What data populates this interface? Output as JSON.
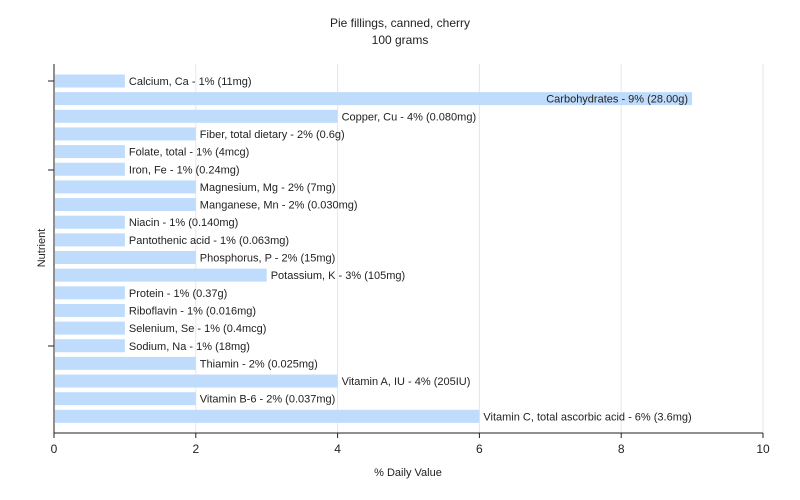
{
  "chart_data": {
    "type": "bar",
    "orientation": "horizontal",
    "title": "Pie fillings, canned, cherry",
    "subtitle": "100 grams",
    "xlabel": "% Daily Value",
    "ylabel": "Nutrient",
    "xlim": [
      0,
      10
    ],
    "xticks": [
      0,
      2,
      4,
      6,
      8,
      10
    ],
    "grid": true,
    "bar_color": "#bfdcfc",
    "categories": [
      "Calcium, Ca",
      "Carbohydrates",
      "Copper, Cu",
      "Fiber, total dietary",
      "Folate, total",
      "Iron, Fe",
      "Magnesium, Mg",
      "Manganese, Mn",
      "Niacin",
      "Pantothenic acid",
      "Phosphorus, P",
      "Potassium, K",
      "Protein",
      "Riboflavin",
      "Selenium, Se",
      "Sodium, Na",
      "Thiamin",
      "Vitamin A, IU",
      "Vitamin B-6",
      "Vitamin C, total ascorbic acid"
    ],
    "values": [
      1,
      9,
      4,
      2,
      1,
      1,
      2,
      2,
      1,
      1,
      2,
      3,
      1,
      1,
      1,
      1,
      2,
      4,
      2,
      6
    ],
    "labels": [
      "Calcium, Ca - 1% (11mg)",
      "Carbohydrates - 9% (28.00g)",
      "Copper, Cu - 4% (0.080mg)",
      "Fiber, total dietary - 2% (0.6g)",
      "Folate, total - 1% (4mcg)",
      "Iron, Fe - 1% (0.24mg)",
      "Magnesium, Mg - 2% (7mg)",
      "Manganese, Mn - 2% (0.030mg)",
      "Niacin - 1% (0.140mg)",
      "Pantothenic acid - 1% (0.063mg)",
      "Phosphorus, P - 2% (15mg)",
      "Potassium, K - 3% (105mg)",
      "Protein - 1% (0.37g)",
      "Riboflavin - 1% (0.016mg)",
      "Selenium, Se - 1% (0.4mcg)",
      "Sodium, Na - 1% (18mg)",
      "Thiamin - 2% (0.025mg)",
      "Vitamin A, IU - 4% (205IU)",
      "Vitamin B-6 - 2% (0.037mg)",
      "Vitamin C, total ascorbic acid - 6% (3.6mg)"
    ]
  }
}
